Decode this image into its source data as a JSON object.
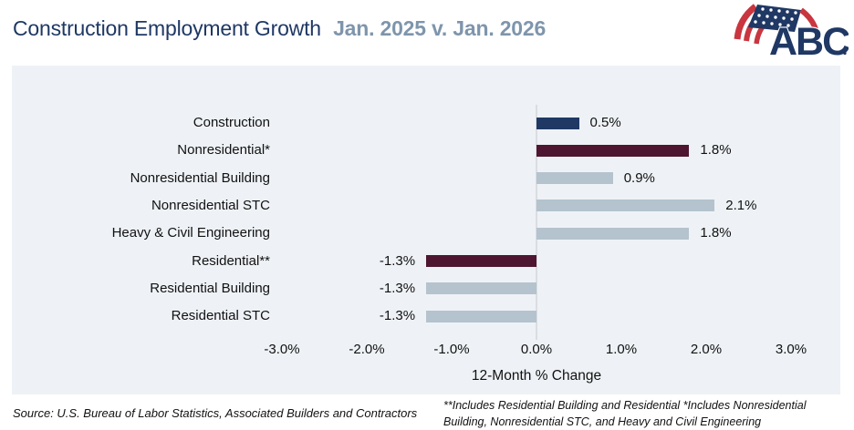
{
  "title": {
    "main": "Construction Employment Growth",
    "date_range": "Jan. 2025 v. Jan. 2026"
  },
  "logo": {
    "text": "ABC"
  },
  "chart_data": {
    "type": "bar",
    "orientation": "horizontal",
    "title": "Construction Employment Growth Jan. 2025 v. Jan. 2026",
    "categories": [
      "Construction",
      "Nonresidential*",
      "Nonresidential Building",
      "Nonresidential STC",
      "Heavy & Civil Engineering",
      "Residential**",
      "Residential Building",
      "Residential STC"
    ],
    "values": [
      0.5,
      1.8,
      0.9,
      2.1,
      1.8,
      -1.3,
      -1.3,
      -1.3
    ],
    "value_labels": [
      "0.5%",
      "1.8%",
      "0.9%",
      "2.1%",
      "1.8%",
      "-1.3%",
      "-1.3%",
      "-1.3%"
    ],
    "bar_colors": [
      "#1F3864",
      "#4E1630",
      "#B4C3CD",
      "#B4C3CD",
      "#B4C3CD",
      "#4E1630",
      "#B4C3CD",
      "#B4C3CD"
    ],
    "xlabel": "12-Month % Change",
    "xlim": [
      -3.0,
      3.0
    ],
    "x_ticks": [
      "-3.0%",
      "-2.0%",
      "-1.0%",
      "0.0%",
      "1.0%",
      "2.0%",
      "3.0%"
    ],
    "x_tick_values": [
      -3,
      -2,
      -1,
      0,
      1,
      2,
      3
    ],
    "grid": "zero-line-only",
    "legend": "none",
    "plot_background": "#EEF2F6"
  },
  "footer": {
    "source": "Source: U.S. Bureau of Labor Statistics, Associated Builders and Contractors",
    "footnote": "**Includes Residential Building and Residential *Includes Nonresidential Building, Nonresidential STC, and Heavy and Civil Engineering"
  },
  "colors": {
    "navy": "#1F3864",
    "maroon": "#4E1630",
    "light_blue_gray": "#B4C3CD",
    "title_date": "#7E95AC",
    "panel_bg": "#EEF2F6",
    "zero_line": "#DADDE2",
    "logo_red": "#C9363F"
  }
}
